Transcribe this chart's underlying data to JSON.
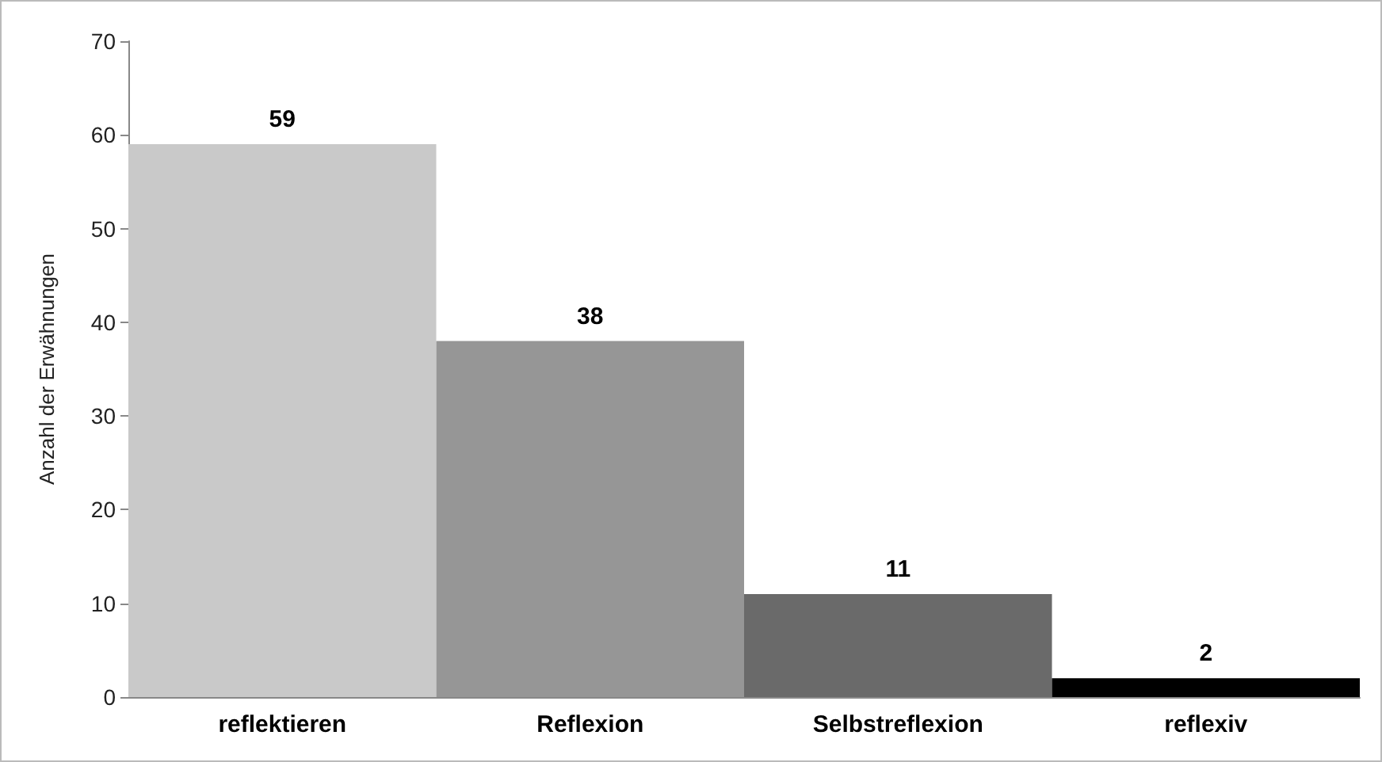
{
  "chart_data": {
    "type": "bar",
    "ylabel": "Anzahl der Erwähnungen",
    "categories": [
      "reflektieren",
      "Reflexion",
      "Selbstreflexion",
      "reflexiv"
    ],
    "values": [
      59,
      38,
      11,
      2
    ],
    "colors": [
      "#c9c9c9",
      "#969696",
      "#6a6a6a",
      "#000000"
    ],
    "ylim": [
      0,
      70
    ],
    "yticks": [
      0,
      10,
      20,
      30,
      40,
      50,
      60,
      70
    ],
    "data_labels": true
  }
}
